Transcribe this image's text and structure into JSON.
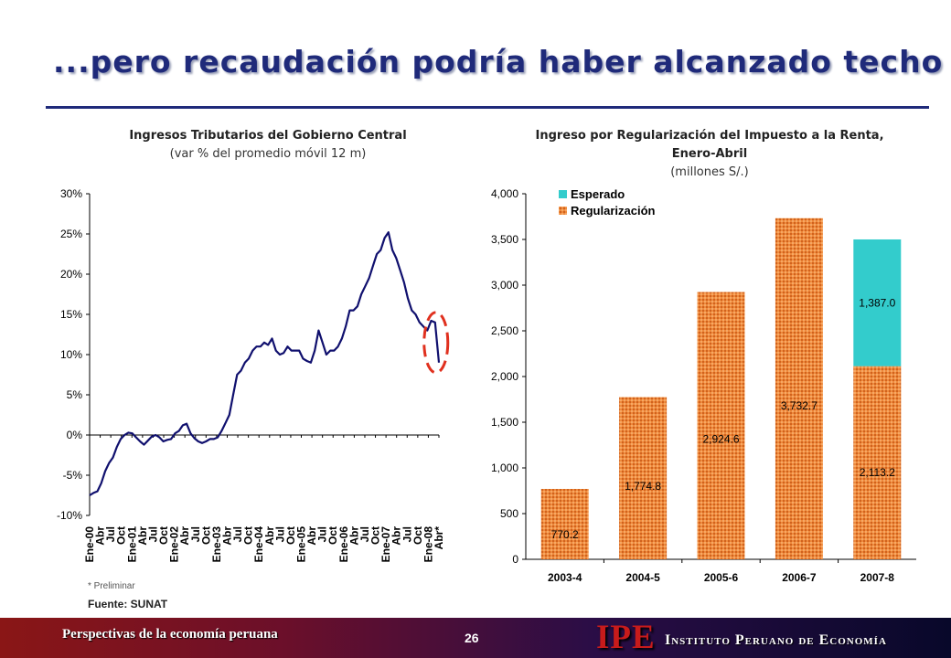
{
  "slide": {
    "title": "...pero recaudación podría haber alcanzado techo"
  },
  "left_chart_text": {
    "title": "Ingresos Tributarios del Gobierno Central",
    "subtitle": "(var % del promedio móvil 12 m)",
    "note": "* Preliminar",
    "source": "Fuente: SUNAT"
  },
  "right_chart_text": {
    "title": "Ingreso por Regularización del Impuesto a la Renta, Enero-Abril",
    "subtitle": "(millones S/.)"
  },
  "footer": {
    "left_text": "Perspectivas de la economía peruana",
    "page_number": "26",
    "logo": "IPE",
    "institute": "Instituto Peruano de Economía"
  },
  "chart_data": [
    {
      "type": "line",
      "title": "Ingresos Tributarios del Gobierno Central",
      "subtitle": "(var % del promedio móvil 12 m)",
      "ylim": [
        -10,
        30
      ],
      "y_ticks": [
        "30%",
        "25%",
        "20%",
        "15%",
        "10%",
        "5%",
        "0%",
        "-5%",
        "-10%"
      ],
      "x_tick_labels": [
        "Ene-00",
        "Abr",
        "Jul",
        "Oct",
        "Ene-01",
        "Abr",
        "Jul",
        "Oct",
        "Ene-02",
        "Abr",
        "Jul",
        "Oct",
        "Ene-03",
        "Abr",
        "Jul",
        "Oct",
        "Ene-04",
        "Abr",
        "Jul",
        "Oct",
        "Ene-05",
        "Abr",
        "Jul",
        "Oct",
        "Ene-06",
        "Abr",
        "Jul",
        "Oct",
        "Ene-07",
        "Abr",
        "Jul",
        "Oct",
        "Ene-08",
        "Abr*"
      ],
      "series": [
        {
          "values": [
            -7.5,
            -7.2,
            -7.0,
            -6.0,
            -4.5,
            -3.5,
            -2.8,
            -1.5,
            -0.5,
            0.0,
            0.3,
            0.2,
            -0.3,
            -0.8,
            -1.2,
            -0.7,
            -0.2,
            0.0,
            -0.3,
            -0.8,
            -0.6,
            -0.5,
            0.2,
            0.5,
            1.2,
            1.4,
            0.2,
            -0.4,
            -0.8,
            -1.0,
            -0.8,
            -0.5,
            -0.5,
            -0.3,
            0.5,
            1.5,
            2.5,
            5.0,
            7.5,
            8.0,
            9.0,
            9.5,
            10.5,
            11.0,
            11.0,
            11.5,
            11.2,
            12.0,
            10.5,
            10.0,
            10.2,
            11.0,
            10.5,
            10.5,
            10.5,
            9.5,
            9.2,
            9.0,
            10.5,
            13.0,
            11.5,
            10.0,
            10.5,
            10.5,
            11.0,
            12.0,
            13.5,
            15.5,
            15.5,
            16.0,
            17.5,
            18.5,
            19.5,
            21.0,
            22.5,
            23.0,
            24.5,
            25.2,
            23.0,
            22.0,
            20.5,
            19.0,
            17.0,
            15.5,
            15.0,
            14.0,
            13.5,
            13.0,
            14.2,
            14.0,
            9.0
          ]
        }
      ],
      "annotation": "highlight-ellipse-last-point"
    },
    {
      "type": "bar",
      "stacked": true,
      "title": "Ingreso por Regularización del Impuesto a la Renta, Enero-Abril",
      "subtitle": "(millones S/.)",
      "ylim": [
        0,
        4000
      ],
      "y_ticks": [
        "4,000",
        "3,500",
        "3,000",
        "2,500",
        "2,000",
        "1,500",
        "1,000",
        "500",
        "0"
      ],
      "categories": [
        "2003-4",
        "2004-5",
        "2005-6",
        "2006-7",
        "2007-8"
      ],
      "series": [
        {
          "name": "Regularización",
          "values": [
            770.2,
            1774.8,
            2924.6,
            3732.7,
            2113.2
          ],
          "labels": [
            "770.2",
            "1,774.8",
            "2,924.6",
            "3,732.7",
            "2,113.2"
          ],
          "color": "#e8782e"
        },
        {
          "name": "Esperado",
          "values": [
            0,
            0,
            0,
            0,
            1387.0
          ],
          "labels": [
            "",
            "",
            "",
            "",
            "1,387.0"
          ],
          "color": "#33cccc"
        }
      ],
      "legend": "top-left"
    }
  ]
}
